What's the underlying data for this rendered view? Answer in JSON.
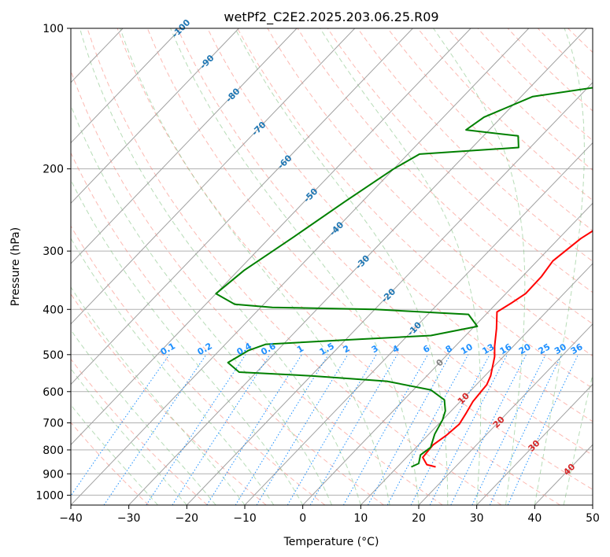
{
  "chart_data": {
    "type": "line",
    "title": "wetPf2_C2E2.2025.203.06.25.R09",
    "xlabel": "Temperature (°C)",
    "ylabel": "Pressure (hPa)",
    "xlim": [
      -40,
      50
    ],
    "ylim": [
      1050,
      100
    ],
    "y_scale": "log",
    "x_ticks": [
      -40,
      -30,
      -20,
      -10,
      0,
      10,
      20,
      30,
      40,
      50
    ],
    "y_ticks": [
      100,
      200,
      300,
      400,
      500,
      600,
      700,
      800,
      900,
      1000
    ],
    "grid": true,
    "colors": {
      "temperature": "#ff0000",
      "dewpoint": "#008000",
      "isotherm": "#a0a0a0",
      "dry_adiabat": "#fa8072",
      "moist_adiabat": "#7cbf7c",
      "mixing_ratio": "#1e90ff",
      "isotherm_label": "#1f77b4",
      "dry_adiabat_label": "#d62728",
      "zero_isotherm_label": "#808080"
    },
    "series": [
      {
        "key": "temperature",
        "points": [
          [
            16.6,
            870
          ],
          [
            14.7,
            860
          ],
          [
            12.8,
            830
          ],
          [
            12.5,
            780
          ],
          [
            13.2,
            745
          ],
          [
            13.6,
            705
          ],
          [
            13.0,
            670
          ],
          [
            12.2,
            630
          ],
          [
            11.8,
            580
          ],
          [
            11.0,
            555
          ],
          [
            8.5,
            505
          ],
          [
            6.8,
            480
          ],
          [
            4.2,
            440
          ],
          [
            1.5,
            405
          ],
          [
            2.5,
            388
          ],
          [
            3.4,
            370
          ],
          [
            3.3,
            340
          ],
          [
            2.7,
            315
          ],
          [
            3.8,
            282
          ],
          [
            6.2,
            252
          ],
          [
            8.7,
            225
          ],
          [
            9.7,
            198
          ],
          [
            10.4,
            175
          ],
          [
            12.5,
            157
          ],
          [
            13.5,
            140
          ],
          [
            12.5,
            128
          ],
          [
            12.7,
            118
          ],
          [
            15.7,
            111
          ],
          [
            17.4,
            105
          ],
          [
            17.6,
            100
          ]
        ]
      },
      {
        "key": "dewpoint",
        "points": [
          [
            12.4,
            870
          ],
          [
            13.1,
            855
          ],
          [
            12.0,
            820
          ],
          [
            12.5,
            790
          ],
          [
            11.0,
            740
          ],
          [
            10.0,
            690
          ],
          [
            9.0,
            660
          ],
          [
            7.0,
            625
          ],
          [
            3.0,
            595
          ],
          [
            -6.0,
            570
          ],
          [
            -20.0,
            555
          ],
          [
            -33.0,
            545
          ],
          [
            -36.5,
            520
          ],
          [
            -35.0,
            490
          ],
          [
            -33.0,
            475
          ],
          [
            -20.0,
            465
          ],
          [
            -6.0,
            455
          ],
          [
            0.5,
            435
          ],
          [
            -3.0,
            410
          ],
          [
            -20.0,
            400
          ],
          [
            -38.0,
            396
          ],
          [
            -45.0,
            390
          ],
          [
            -50.0,
            370
          ],
          [
            -49.0,
            330
          ],
          [
            -46.0,
            280
          ],
          [
            -43.0,
            235
          ],
          [
            -40.0,
            200
          ],
          [
            -38.0,
            186
          ],
          [
            -22.0,
            180
          ],
          [
            -24.0,
            170
          ],
          [
            -34.0,
            165
          ],
          [
            -33.0,
            155
          ],
          [
            -28.0,
            140
          ],
          [
            -5.0,
            125
          ],
          [
            -3.0,
            113
          ],
          [
            -8.0,
            105
          ],
          [
            -5.0,
            100
          ]
        ]
      }
    ],
    "isotherm_labels": [
      "-100",
      "-90",
      "-80",
      "-70",
      "-60",
      "-50",
      "-40",
      "-30",
      "-20",
      "-10",
      "0",
      "10",
      "20",
      "30",
      "40"
    ],
    "mixing_ratio_labels": [
      "0.1",
      "0.2",
      "0.4",
      "0.6",
      "1",
      "1.5",
      "2",
      "3",
      "4",
      "6",
      "8",
      "10",
      "13",
      "16",
      "20",
      "25",
      "30",
      "36"
    ]
  }
}
